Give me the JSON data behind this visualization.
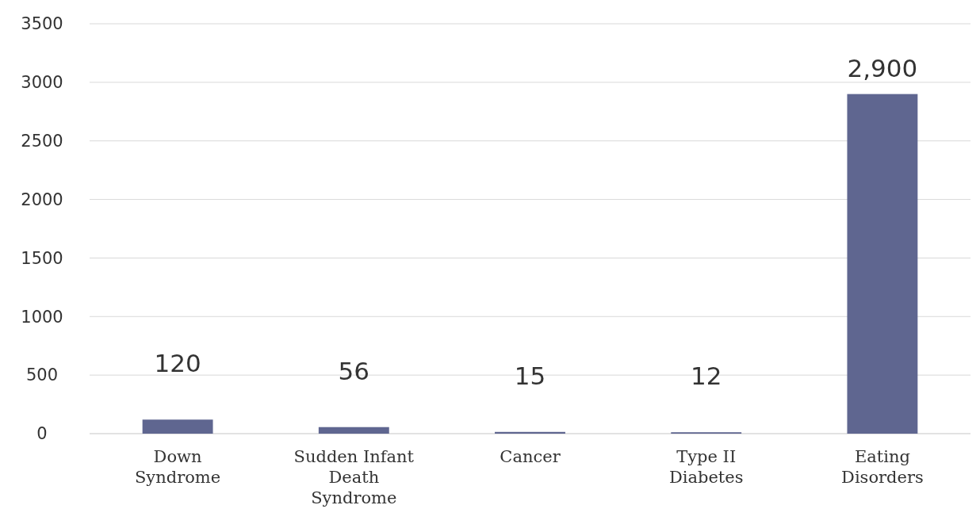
{
  "chart_data": {
    "type": "bar",
    "categories": [
      "Down Syndrome",
      "Sudden Infant Death Syndrome",
      "Cancer",
      "Type II Diabetes",
      "Eating Disorders"
    ],
    "values": [
      120,
      56,
      15,
      12,
      2900
    ],
    "value_labels": [
      "120",
      "56",
      "15",
      "12",
      "2,900"
    ],
    "color": "#5f6690",
    "ylim": [
      0,
      3500
    ],
    "yticks": [
      0,
      500,
      1000,
      1500,
      2000,
      2500,
      3000,
      3500
    ],
    "grid": "y"
  }
}
